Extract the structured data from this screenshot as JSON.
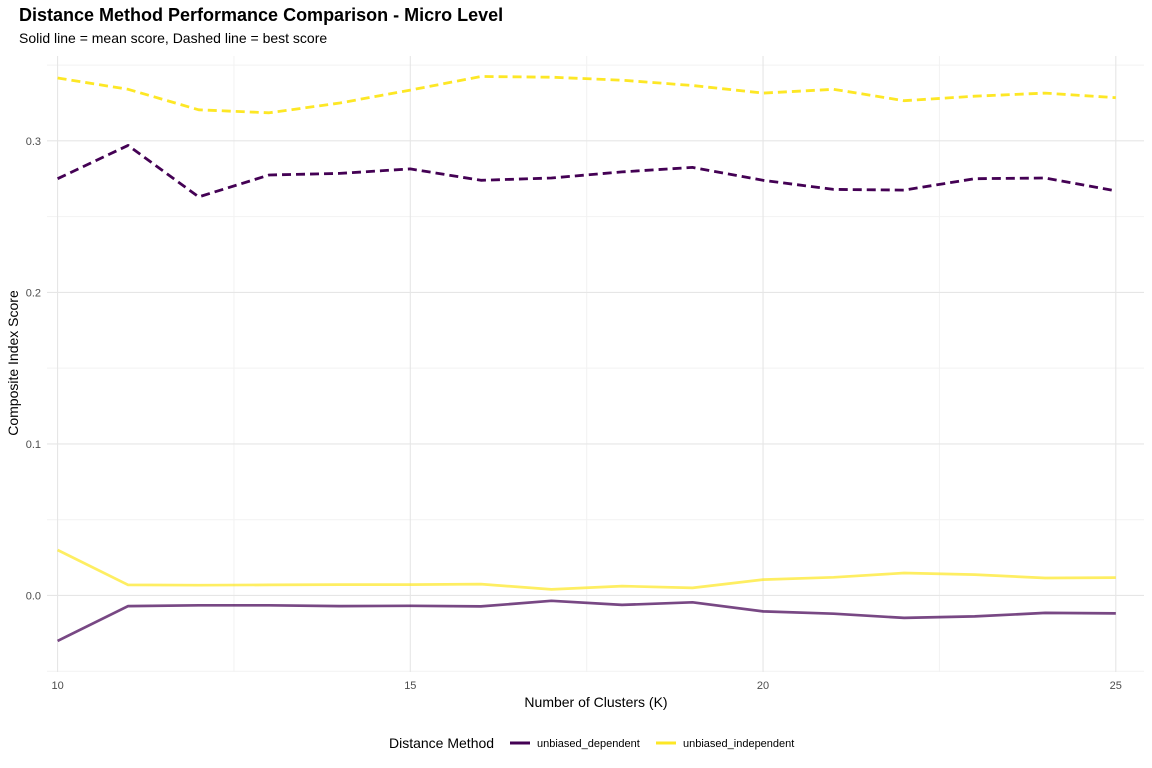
{
  "chart_data": {
    "type": "line",
    "title": "Distance Method Performance Comparison - Micro Level",
    "subtitle": "Solid line = mean score, Dashed line = best score",
    "xlabel": "Number of Clusters (K)",
    "ylabel": "Composite Index Score",
    "x": [
      10,
      11,
      12,
      13,
      14,
      15,
      16,
      17,
      18,
      19,
      20,
      21,
      22,
      23,
      24,
      25
    ],
    "xlim": [
      9.85,
      25.4
    ],
    "ylim": [
      -0.0505,
      0.356
    ],
    "x_ticks": [
      10,
      15,
      20,
      25
    ],
    "x_tick_labels": [
      "10",
      "15",
      "20",
      "25"
    ],
    "y_ticks": [
      0.0,
      0.1,
      0.2,
      0.3
    ],
    "y_tick_labels": [
      "0.0",
      "0.1",
      "0.2",
      "0.3"
    ],
    "grid": true,
    "legend_position": "bottom",
    "legend_title": "Distance Method",
    "series": [
      {
        "name": "unbiased_dependent",
        "color": "#440154",
        "stat": "mean",
        "line": "solid",
        "values": [
          -0.03,
          -0.007,
          -0.0065,
          -0.0065,
          -0.007,
          -0.0068,
          -0.0072,
          -0.0035,
          -0.0062,
          -0.0045,
          -0.0105,
          -0.012,
          -0.0148,
          -0.0138,
          -0.0115,
          -0.0118
        ]
      },
      {
        "name": "unbiased_dependent",
        "color": "#440154",
        "stat": "best",
        "line": "dashed",
        "values": [
          0.275,
          0.297,
          0.263,
          0.2775,
          0.2785,
          0.2815,
          0.274,
          0.2755,
          0.2795,
          0.2825,
          0.274,
          0.268,
          0.2675,
          0.275,
          0.2755,
          0.267
        ]
      },
      {
        "name": "unbiased_independent",
        "color": "#FDE725",
        "stat": "mean",
        "line": "solid",
        "values": [
          0.03,
          0.007,
          0.0068,
          0.007,
          0.0072,
          0.0072,
          0.0075,
          0.004,
          0.0062,
          0.005,
          0.0105,
          0.012,
          0.0148,
          0.0138,
          0.0115,
          0.0118
        ]
      },
      {
        "name": "unbiased_independent",
        "color": "#FDE725",
        "stat": "best",
        "line": "dashed",
        "values": [
          0.3415,
          0.334,
          0.3205,
          0.3185,
          0.325,
          0.3335,
          0.3425,
          0.342,
          0.34,
          0.3365,
          0.3315,
          0.334,
          0.3265,
          0.3295,
          0.3315,
          0.3285
        ]
      }
    ],
    "legend": [
      {
        "label": "unbiased_dependent",
        "color": "#440154"
      },
      {
        "label": "unbiased_independent",
        "color": "#FDE725"
      }
    ]
  }
}
